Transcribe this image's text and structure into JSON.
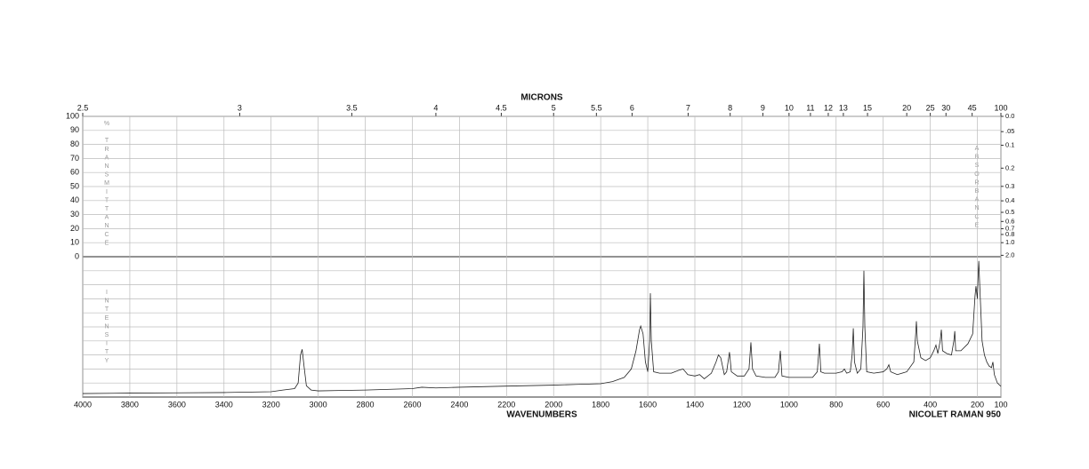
{
  "chart_data": {
    "type": "line",
    "title": "MICRONS",
    "xlabel": "WAVENUMBERS",
    "instrument": "NICOLET RAMAN 950",
    "intensity_label": "INTENSITY",
    "color": "#222222",
    "xlim": [
      4000,
      100
    ],
    "xticks": [
      4000,
      3800,
      3600,
      3400,
      3200,
      3000,
      2800,
      2600,
      2400,
      2200,
      2000,
      1800,
      1600,
      1400,
      1200,
      1000,
      800,
      600,
      400,
      200,
      100
    ],
    "micron_ticks": [
      2.5,
      3,
      3.5,
      4,
      4.5,
      5,
      5.5,
      6,
      7,
      8,
      9,
      10,
      11,
      12,
      13,
      15,
      20,
      25,
      30,
      45,
      100
    ],
    "transmittance": {
      "label": "% TRANSMITTANCE",
      "ylim": [
        0,
        100
      ],
      "yticks": [
        100,
        90,
        80,
        70,
        60,
        50,
        40,
        30,
        20,
        10,
        0
      ]
    },
    "absorbance": {
      "label": "ABSORBANCE",
      "ticks": [
        {
          "value": 0,
          "label": "0.0"
        },
        {
          "value": 0.05,
          "label": ".05"
        },
        {
          "value": 0.1,
          "label": "0.1"
        },
        {
          "value": 0.2,
          "label": "0.2"
        },
        {
          "value": 0.3,
          "label": "0.3"
        },
        {
          "value": 0.4,
          "label": "0.4"
        },
        {
          "value": 0.5,
          "label": "0.5"
        },
        {
          "value": 0.6,
          "label": "0.6"
        },
        {
          "value": 0.7,
          "label": "0.7"
        },
        {
          "value": 0.8,
          "label": "0.8"
        },
        {
          "value": 1,
          "label": "1.0"
        },
        {
          "value": 2,
          "label": "2.0"
        }
      ]
    },
    "ylim": [
      0,
      100
    ],
    "x": [
      4000,
      3800,
      3600,
      3400,
      3200,
      3150,
      3100,
      3085,
      3075,
      3068,
      3060,
      3050,
      3030,
      3000,
      2800,
      2600,
      2560,
      2500,
      2400,
      2200,
      2000,
      1900,
      1800,
      1750,
      1700,
      1670,
      1650,
      1635,
      1630,
      1620,
      1610,
      1600,
      1592,
      1589,
      1585,
      1575,
      1550,
      1500,
      1470,
      1450,
      1430,
      1400,
      1380,
      1360,
      1330,
      1310,
      1300,
      1290,
      1275,
      1265,
      1253,
      1245,
      1220,
      1190,
      1170,
      1162,
      1155,
      1140,
      1100,
      1060,
      1045,
      1037,
      1030,
      1000,
      950,
      900,
      880,
      871,
      865,
      850,
      800,
      775,
      765,
      755,
      740,
      732,
      727,
      722,
      710,
      695,
      686,
      682,
      678,
      670,
      640,
      600,
      585,
      576,
      568,
      540,
      500,
      470,
      462,
      459,
      455,
      440,
      420,
      400,
      385,
      376,
      368,
      358,
      353,
      348,
      330,
      310,
      300,
      296,
      292,
      270,
      240,
      220,
      210,
      206,
      200,
      196,
      194,
      190,
      185,
      180,
      170,
      160,
      150,
      140,
      134,
      128,
      115,
      100
    ],
    "values": [
      2.5,
      2.8,
      3.0,
      3.2,
      3.8,
      5,
      6,
      10,
      30,
      34,
      22,
      8,
      5,
      4.4,
      5,
      6,
      7,
      6.5,
      7,
      7.8,
      8.5,
      9,
      9.5,
      11,
      14,
      20,
      33,
      48,
      50.6,
      45,
      25,
      18,
      40,
      74,
      40,
      18,
      17,
      17,
      19,
      20,
      16,
      15,
      16,
      13,
      17,
      25,
      30,
      28,
      16,
      18,
      32,
      18,
      15,
      15,
      20,
      39,
      20,
      15,
      14,
      14,
      18,
      33,
      15,
      14,
      14,
      14,
      18,
      38,
      18,
      17,
      17,
      18,
      20,
      17,
      18,
      30,
      49,
      25,
      17,
      20,
      50,
      90,
      50,
      18,
      17,
      18,
      20,
      23,
      18,
      16,
      18,
      25,
      45,
      54,
      40,
      28,
      26,
      28,
      33,
      37,
      31,
      40,
      48,
      33,
      31,
      30,
      40,
      47,
      33,
      33,
      38,
      45,
      72,
      79,
      70,
      90,
      97,
      80,
      60,
      40,
      30,
      25,
      22,
      21,
      25,
      16,
      10,
      7.6
    ]
  }
}
